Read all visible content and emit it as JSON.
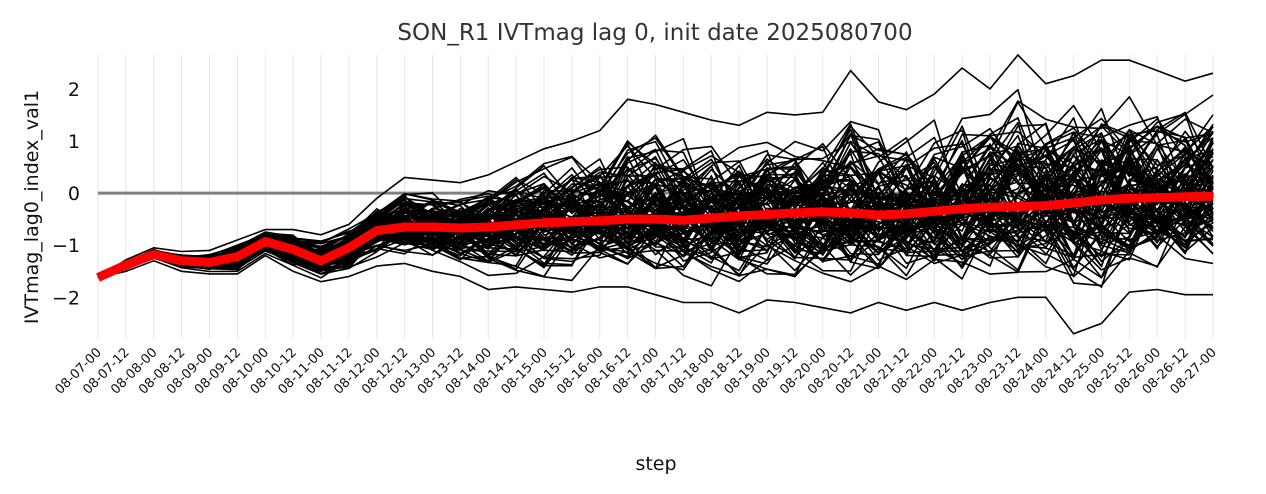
{
  "chart_data": {
    "type": "line",
    "title": "SON_R1 IVTmag lag 0, init date 2025080700",
    "xlabel": "step",
    "ylabel": "IVTmag_lag0_index_val1",
    "x": [
      "08-07-00",
      "08-07-12",
      "08-08-00",
      "08-08-12",
      "08-09-00",
      "08-09-12",
      "08-10-00",
      "08-10-12",
      "08-11-00",
      "08-11-12",
      "08-12-00",
      "08-12-12",
      "08-13-00",
      "08-13-12",
      "08-14-00",
      "08-14-12",
      "08-15-00",
      "08-15-12",
      "08-16-00",
      "08-16-12",
      "08-17-00",
      "08-17-12",
      "08-18-00",
      "08-18-12",
      "08-19-00",
      "08-19-12",
      "08-20-00",
      "08-20-12",
      "08-21-00",
      "08-21-12",
      "08-22-00",
      "08-22-12",
      "08-23-00",
      "08-23-12",
      "08-24-00",
      "08-24-12",
      "08-25-00",
      "08-25-12",
      "08-26-00",
      "08-26-12",
      "08-27-00"
    ],
    "ylim": [
      -2.8,
      2.65
    ],
    "yticks": [
      -2,
      -1,
      0,
      1,
      2
    ],
    "ytick_labels": [
      "−2",
      "−1",
      "0",
      "1",
      "2"
    ],
    "reference_line": {
      "y": 0,
      "color": "#808080"
    },
    "grid": "vertical",
    "member_color": "#000000",
    "mean_color": "#ff0000",
    "series": [
      {
        "values": [
          -1.62,
          -1.38,
          -1.18,
          -1.3,
          -1.33,
          -1.22,
          -0.93,
          -1.08,
          -1.3,
          -1.05,
          -0.72,
          -0.65,
          -0.65,
          -0.67,
          -0.65,
          -0.61,
          -0.57,
          -0.55,
          -0.53,
          -0.5,
          -0.5,
          -0.52,
          -0.48,
          -0.44,
          -0.41,
          -0.38,
          -0.36,
          -0.38,
          -0.42,
          -0.4,
          -0.35,
          -0.3,
          -0.27,
          -0.26,
          -0.24,
          -0.19,
          -0.13,
          -0.1,
          -0.09,
          -0.07,
          -0.06
        ]
      }
    ],
    "ensemble_members": 100,
    "member_spread": {
      "lower": [
        -1.62,
        -1.5,
        -1.3,
        -1.5,
        -1.55,
        -1.55,
        -1.2,
        -1.5,
        -1.7,
        -1.6,
        -1.4,
        -1.35,
        -1.5,
        -1.6,
        -1.85,
        -1.8,
        -1.85,
        -1.9,
        -1.8,
        -1.8,
        -1.95,
        -2.1,
        -2.1,
        -2.3,
        -2.05,
        -2.1,
        -2.2,
        -2.3,
        -2.1,
        -2.25,
        -2.1,
        -2.25,
        -2.1,
        -2.0,
        -2.0,
        -2.7,
        -2.5,
        -1.9,
        -1.85,
        -1.95,
        -1.95
      ],
      "upper": [
        -1.62,
        -1.28,
        -1.05,
        -1.12,
        -1.1,
        -0.9,
        -0.7,
        -0.7,
        -0.8,
        -0.6,
        -0.1,
        0.3,
        0.25,
        0.2,
        0.35,
        0.6,
        0.85,
        1.0,
        1.2,
        1.8,
        1.7,
        1.55,
        1.4,
        1.3,
        1.55,
        1.5,
        1.55,
        2.35,
        1.75,
        1.6,
        1.9,
        2.4,
        2.0,
        2.65,
        2.1,
        2.25,
        2.55,
        2.55,
        2.35,
        2.15,
        2.3
      ]
    }
  }
}
